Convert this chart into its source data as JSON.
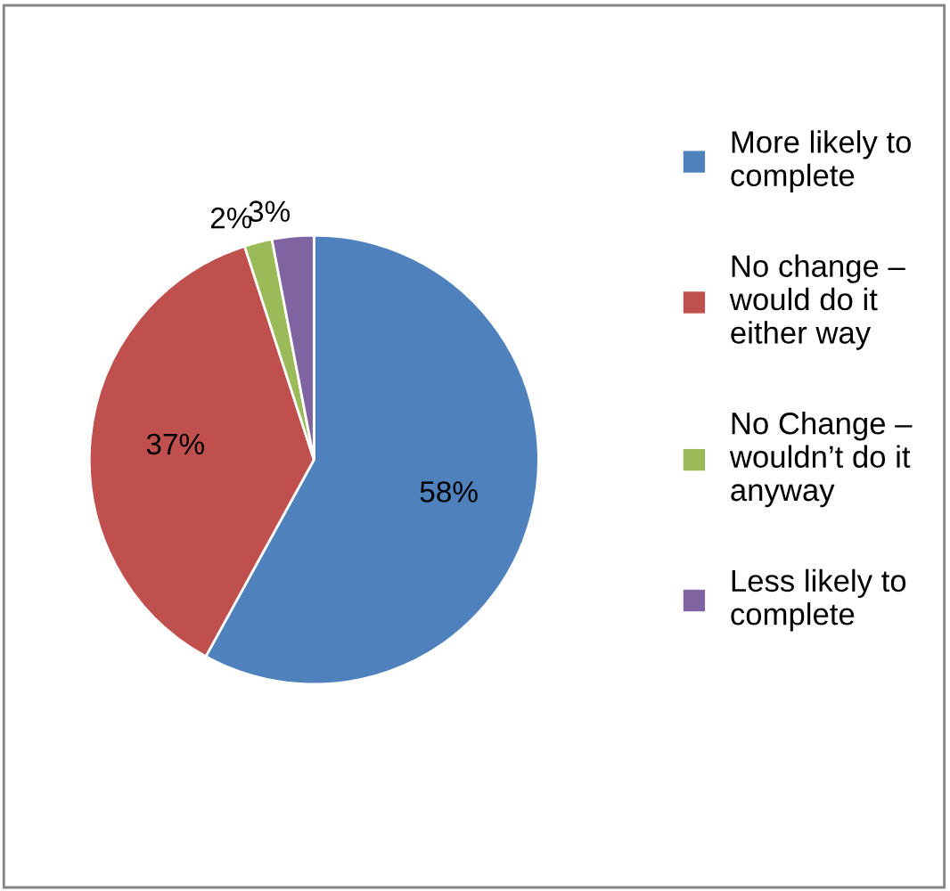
{
  "chart_data": {
    "type": "pie",
    "categories": [
      "More likely to\ncomplete",
      "No change –\nwould do it\neither way",
      "No Change –\nwouldn’t do it\nanyway",
      "Less likely to\ncomplete"
    ],
    "values": [
      58,
      37,
      2,
      3
    ],
    "colors": [
      "#4f81bd",
      "#c0504d",
      "#9bbb59",
      "#8064a2"
    ],
    "value_labels": [
      "58%",
      "37%",
      "2%",
      "3%"
    ],
    "legend": "right"
  }
}
